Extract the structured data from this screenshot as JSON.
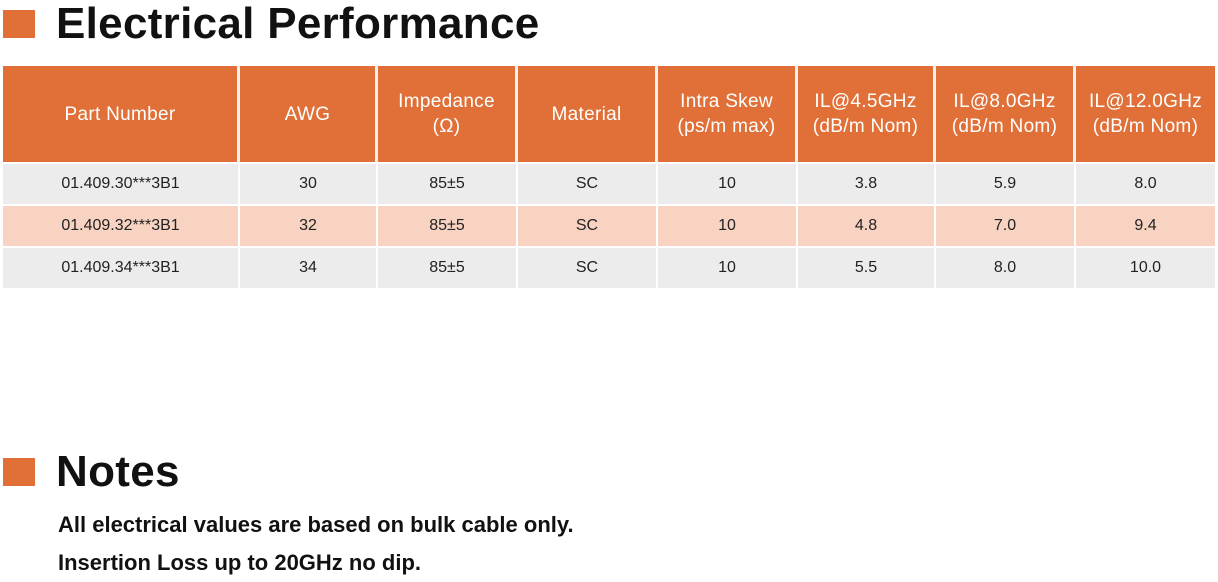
{
  "electrical": {
    "heading": "Electrical Performance",
    "columns": [
      {
        "line1": "Part Number",
        "line2": ""
      },
      {
        "line1": "AWG",
        "line2": ""
      },
      {
        "line1": "Impedance",
        "line2": "(Ω)"
      },
      {
        "line1": "Material",
        "line2": ""
      },
      {
        "line1": "Intra Skew",
        "line2": "(ps/m max)"
      },
      {
        "line1": "IL@4.5GHz",
        "line2": "(dB/m Nom)"
      },
      {
        "line1": "IL@8.0GHz",
        "line2": "(dB/m Nom)"
      },
      {
        "line1": "IL@12.0GHz",
        "line2": "(dB/m Nom)"
      }
    ],
    "rows": [
      [
        "01.409.30***3B1",
        "30",
        "85±5",
        "SC",
        "10",
        "3.8",
        "5.9",
        "8.0"
      ],
      [
        "01.409.32***3B1",
        "32",
        "85±5",
        "SC",
        "10",
        "4.8",
        "7.0",
        "9.4"
      ],
      [
        "01.409.34***3B1",
        "34",
        "85±5",
        "SC",
        "10",
        "5.5",
        "8.0",
        "10.0"
      ]
    ]
  },
  "notes": {
    "heading": "Notes",
    "lines": [
      "All electrical values are based on bulk cable only.",
      "Insertion Loss up to 20GHz no dip."
    ]
  },
  "colors": {
    "accent": "#e07038",
    "row_gray": "#ececec",
    "row_peach": "#f8d3c2"
  }
}
